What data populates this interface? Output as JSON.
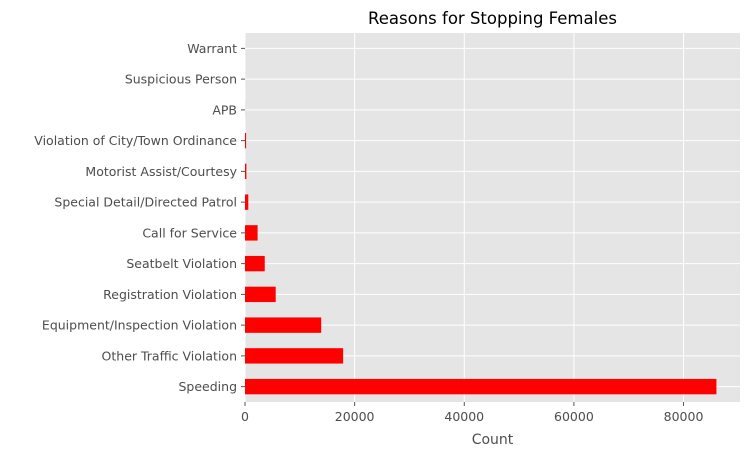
{
  "chart_data": {
    "type": "bar",
    "orientation": "horizontal",
    "title": "Reasons for Stopping Females",
    "xlabel": "Count",
    "ylabel": "",
    "xlim": [
      0,
      90300
    ],
    "xticks": [
      0,
      20000,
      40000,
      60000,
      80000
    ],
    "xtick_labels": [
      "0",
      "20000",
      "40000",
      "60000",
      "80000"
    ],
    "grid": true,
    "legend": "none",
    "bar_color": "#ff0000",
    "background_color": "#e5e5e5",
    "categories": [
      "Speeding",
      "Other Traffic Violation",
      "Equipment/Inspection Violation",
      "Registration Violation",
      "Seatbelt Violation",
      "Call for Service",
      "Special Detail/Directed Patrol",
      "Motorist Assist/Courtesy",
      "Violation of City/Town Ordinance",
      "APB",
      "Suspicious Person",
      "Warrant"
    ],
    "values": [
      86000,
      17900,
      13900,
      5600,
      3600,
      2300,
      600,
      250,
      200,
      10,
      5,
      3
    ]
  }
}
